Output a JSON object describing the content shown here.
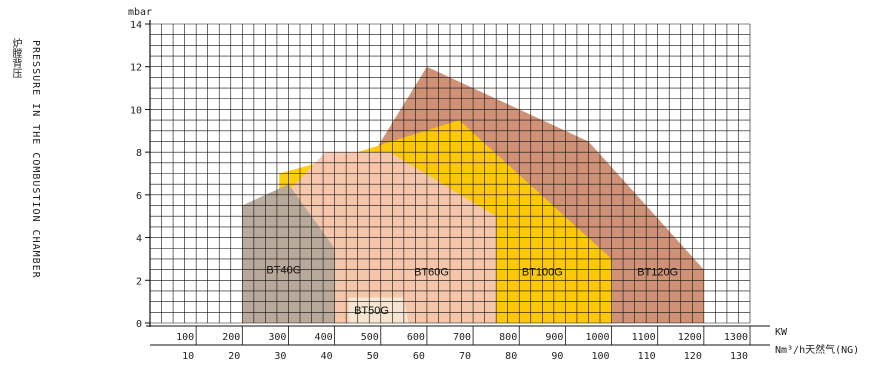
{
  "chart_data": {
    "type": "area",
    "ylabel_unit": "mbar",
    "ylabel_en": "PRESSURE IN THE COMBUSTION CHAMBER",
    "ylabel_zh": "炉膛背压",
    "xlabel_kw": "KW",
    "xlabel_ng": "Nm³/h天然气(NG)",
    "xlim": [
      0,
      1300
    ],
    "ylim": [
      0,
      14
    ],
    "x_ticks_kw": [
      "100",
      "200",
      "300",
      "400",
      "500",
      "600",
      "700",
      "800",
      "900",
      "1000",
      "1100",
      "1200",
      "1300"
    ],
    "x_ticks_ng": [
      "10",
      "20",
      "30",
      "40",
      "50",
      "60",
      "70",
      "80",
      "90",
      "100",
      "110",
      "120",
      "130"
    ],
    "y_ticks": [
      "0",
      "2",
      "4",
      "6",
      "8",
      "10",
      "12",
      "14"
    ],
    "grid": true,
    "series": [
      {
        "name": "BT120G",
        "color": "#cd8c70",
        "points": [
          [
            400,
            0
          ],
          [
            400,
            5
          ],
          [
            500,
            8.5
          ],
          [
            600,
            12
          ],
          [
            950,
            8.5
          ],
          [
            1200,
            2.5
          ],
          [
            1200,
            0
          ]
        ]
      },
      {
        "name": "BT100G",
        "color": "#ffcc00",
        "points": [
          [
            280,
            0
          ],
          [
            280,
            7
          ],
          [
            450,
            8
          ],
          [
            670,
            9.5
          ],
          [
            1000,
            3
          ],
          [
            1000,
            0
          ]
        ]
      },
      {
        "name": "BT60G",
        "color": "#f6c6b4",
        "points": [
          [
            200,
            0
          ],
          [
            200,
            3
          ],
          [
            250,
            5
          ],
          [
            380,
            8
          ],
          [
            520,
            8
          ],
          [
            750,
            5
          ],
          [
            750,
            0
          ]
        ]
      },
      {
        "name": "BT40G",
        "color": "#b5a89a",
        "points": [
          [
            200,
            0
          ],
          [
            200,
            5.5
          ],
          [
            300,
            6.5
          ],
          [
            400,
            3.5
          ],
          [
            400,
            0
          ]
        ]
      },
      {
        "name": "BT50G",
        "color": "#f6e7d2",
        "points": [
          [
            430,
            0
          ],
          [
            430,
            1.2
          ],
          [
            550,
            1.2
          ],
          [
            560,
            0
          ]
        ]
      }
    ],
    "labels": [
      {
        "text": "BT40G",
        "x": 290,
        "y": 2.5
      },
      {
        "text": "BT50G",
        "x": 480,
        "y": 0.6
      },
      {
        "text": "BT60G",
        "x": 610,
        "y": 2.4
      },
      {
        "text": "BT100G",
        "x": 850,
        "y": 2.4
      },
      {
        "text": "BT120G",
        "x": 1100,
        "y": 2.4
      }
    ]
  }
}
